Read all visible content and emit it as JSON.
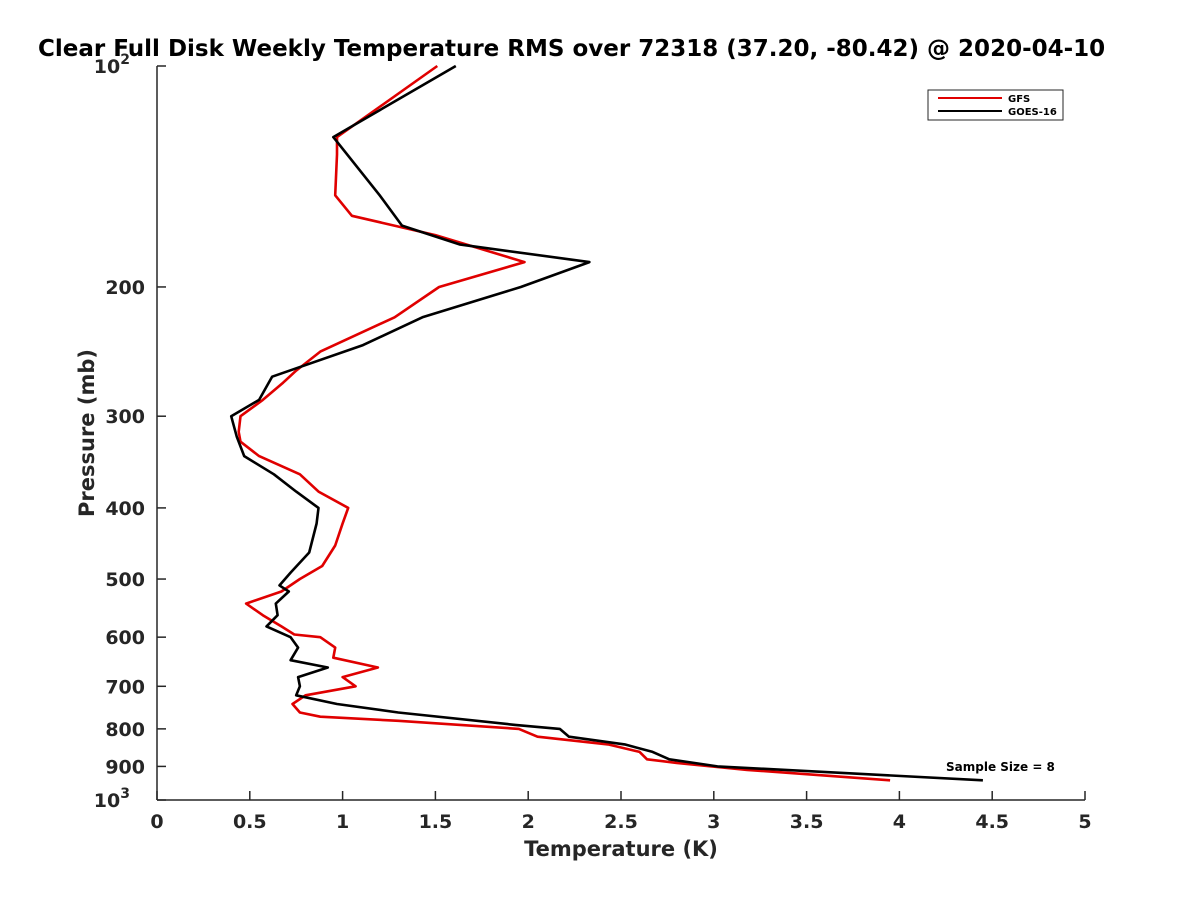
{
  "chart_data": {
    "type": "line",
    "title": "Clear Full Disk Weekly Temperature RMS over 72318 (37.20, -80.42) @ 2020-04-10",
    "xlabel": "Temperature (K)",
    "ylabel": "Pressure (mb)",
    "xlim": [
      0,
      5
    ],
    "ylim": [
      100,
      1000
    ],
    "y_scale": "log",
    "y_reversed": true,
    "x_ticks": [
      "0",
      "0.5",
      "1",
      "1.5",
      "2",
      "2.5",
      "3",
      "3.5",
      "4",
      "4.5",
      "5"
    ],
    "y_ticks": [
      {
        "value": 100,
        "base": "10",
        "exp": "2"
      },
      {
        "value": 200,
        "label": "200"
      },
      {
        "value": 300,
        "label": "300"
      },
      {
        "value": 400,
        "label": "400"
      },
      {
        "value": 500,
        "label": "500"
      },
      {
        "value": 600,
        "label": "600"
      },
      {
        "value": 700,
        "label": "700"
      },
      {
        "value": 800,
        "label": "800"
      },
      {
        "value": 900,
        "label": "900"
      },
      {
        "value": 1000,
        "base": "10",
        "exp": "3"
      }
    ],
    "grid": false,
    "legend_position": "top-right",
    "annotation": "Sample Size = 8",
    "series": [
      {
        "name": "GFS",
        "color": "#e00000",
        "points": [
          [
            1.51,
            100
          ],
          [
            0.97,
            125
          ],
          [
            0.97,
            132
          ],
          [
            0.96,
            150
          ],
          [
            1.05,
            160
          ],
          [
            1.5,
            170
          ],
          [
            1.98,
            185
          ],
          [
            1.52,
            200
          ],
          [
            1.28,
            220
          ],
          [
            0.88,
            245
          ],
          [
            0.75,
            260
          ],
          [
            0.68,
            270
          ],
          [
            0.57,
            285
          ],
          [
            0.45,
            300
          ],
          [
            0.44,
            315
          ],
          [
            0.45,
            325
          ],
          [
            0.55,
            340
          ],
          [
            0.77,
            360
          ],
          [
            0.87,
            380
          ],
          [
            1.03,
            400
          ],
          [
            1.0,
            420
          ],
          [
            0.96,
            450
          ],
          [
            0.89,
            480
          ],
          [
            0.77,
            500
          ],
          [
            0.67,
            520
          ],
          [
            0.48,
            540
          ],
          [
            0.57,
            560
          ],
          [
            0.67,
            580
          ],
          [
            0.74,
            595
          ],
          [
            0.88,
            600
          ],
          [
            0.96,
            620
          ],
          [
            0.95,
            640
          ],
          [
            1.19,
            660
          ],
          [
            1.0,
            680
          ],
          [
            1.07,
            700
          ],
          [
            0.8,
            720
          ],
          [
            0.73,
            740
          ],
          [
            0.77,
            760
          ],
          [
            0.88,
            770
          ],
          [
            1.3,
            780
          ],
          [
            1.95,
            800
          ],
          [
            2.05,
            820
          ],
          [
            2.43,
            840
          ],
          [
            2.6,
            860
          ],
          [
            2.64,
            880
          ],
          [
            2.8,
            890
          ],
          [
            3.18,
            910
          ],
          [
            3.95,
            940
          ]
        ]
      },
      {
        "name": "GOES-16",
        "color": "#000000",
        "points": [
          [
            1.61,
            100
          ],
          [
            0.95,
            125
          ],
          [
            1.2,
            150
          ],
          [
            1.32,
            165
          ],
          [
            1.63,
            175
          ],
          [
            2.33,
            185
          ],
          [
            1.96,
            200
          ],
          [
            1.43,
            220
          ],
          [
            1.11,
            240
          ],
          [
            0.62,
            265
          ],
          [
            0.55,
            285
          ],
          [
            0.4,
            300
          ],
          [
            0.43,
            320
          ],
          [
            0.47,
            340
          ],
          [
            0.63,
            360
          ],
          [
            0.75,
            380
          ],
          [
            0.87,
            400
          ],
          [
            0.86,
            420
          ],
          [
            0.82,
            460
          ],
          [
            0.72,
            490
          ],
          [
            0.66,
            510
          ],
          [
            0.71,
            520
          ],
          [
            0.64,
            540
          ],
          [
            0.65,
            560
          ],
          [
            0.59,
            580
          ],
          [
            0.72,
            600
          ],
          [
            0.76,
            620
          ],
          [
            0.72,
            645
          ],
          [
            0.92,
            660
          ],
          [
            0.76,
            680
          ],
          [
            0.77,
            700
          ],
          [
            0.75,
            720
          ],
          [
            0.97,
            740
          ],
          [
            1.3,
            760
          ],
          [
            1.93,
            790
          ],
          [
            2.17,
            800
          ],
          [
            2.22,
            820
          ],
          [
            2.52,
            840
          ],
          [
            2.67,
            860
          ],
          [
            2.76,
            880
          ],
          [
            3.02,
            900
          ],
          [
            4.45,
            940
          ]
        ]
      }
    ]
  }
}
